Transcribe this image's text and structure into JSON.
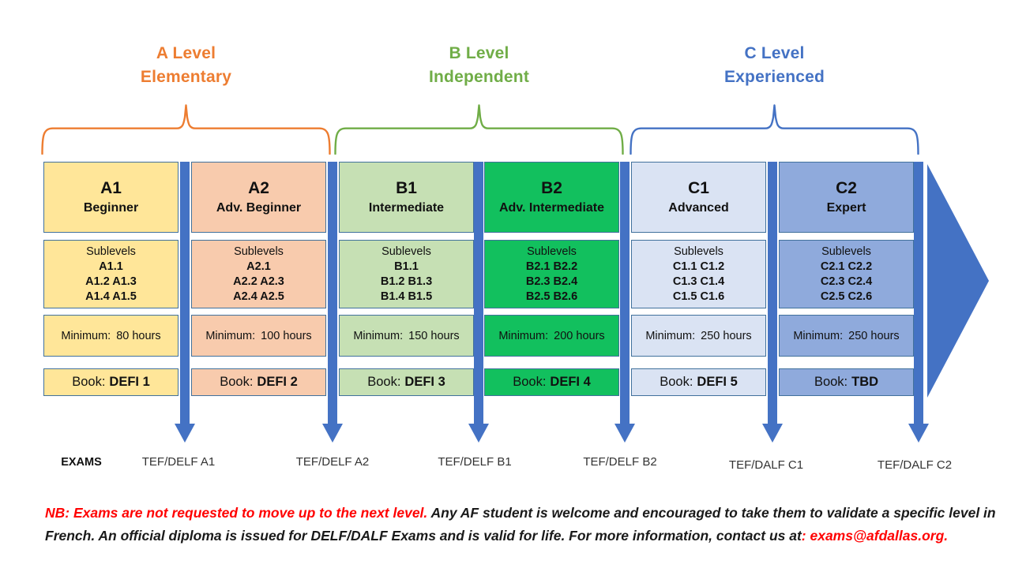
{
  "groups": [
    {
      "line1": "A Level",
      "line2": "Elementary",
      "color": "#ED7D31"
    },
    {
      "line1": "B Level",
      "line2": "Independent",
      "color": "#70AD47"
    },
    {
      "line1": "C Level",
      "line2": "Experienced",
      "color": "#4472C4"
    }
  ],
  "levels": [
    {
      "code": "A1",
      "name": "Beginner",
      "fill": "#FFE699",
      "sublevels_label": "Sublevels",
      "sublevels": [
        "A1.1",
        "A1.2 A1.3",
        "A1.4 A1.5"
      ],
      "minimum_label": "Minimum:",
      "minimum_hours": "80 hours",
      "book_label": "Book:",
      "book_value": "DEFI 1",
      "exam": "TEF/DELF A1"
    },
    {
      "code": "A2",
      "name": "Adv. Beginner",
      "fill": "#F8CBAD",
      "sublevels_label": "Sublevels",
      "sublevels": [
        "A2.1",
        "A2.2 A2.3",
        "A2.4 A2.5"
      ],
      "minimum_label": "Minimum:",
      "minimum_hours": "100 hours",
      "book_label": "Book:",
      "book_value": "DEFI 2",
      "exam": "TEF/DELF A2"
    },
    {
      "code": "B1",
      "name": "Intermediate",
      "fill": "#C6E0B4",
      "sublevels_label": "Sublevels",
      "sublevels": [
        "B1.1",
        "B1.2 B1.3",
        "B1.4 B1.5"
      ],
      "minimum_label": "Minimum:",
      "minimum_hours": "150 hours",
      "book_label": "Book:",
      "book_value": "DEFI 3",
      "exam": "TEF/DELF B1"
    },
    {
      "code": "B2",
      "name": "Adv. Intermediate",
      "fill": "#12C05E",
      "sublevels_label": "Sublevels",
      "sublevels": [
        "B2.1 B2.2",
        "B2.3 B2.4",
        "B2.5 B2.6"
      ],
      "minimum_label": "Minimum:",
      "minimum_hours": "200 hours",
      "book_label": "Book:",
      "book_value": "DEFI 4",
      "exam": "TEF/DELF B2"
    },
    {
      "code": "C1",
      "name": "Advanced",
      "fill": "#DAE3F3",
      "sublevels_label": "Sublevels",
      "sublevels": [
        "C1.1 C1.2",
        "C1.3 C1.4",
        "C1.5 C1.6"
      ],
      "minimum_label": "Minimum:",
      "minimum_hours": "250 hours",
      "book_label": "Book:",
      "book_value": "DEFI 5",
      "exam": "TEF/DALF C1"
    },
    {
      "code": "C2",
      "name": "Expert",
      "fill": "#8FAADC",
      "sublevels_label": "Sublevels",
      "sublevels": [
        "C2.1 C2.2",
        "C2.3 C2.4",
        "C2.5 C2.6"
      ],
      "minimum_label": "Minimum:",
      "minimum_hours": "250 hours",
      "book_label": "Book:",
      "book_value": "TBD",
      "exam": "TEF/DALF C2"
    }
  ],
  "exams_label": "EXAMS",
  "note": {
    "line1_red": "NB: Exams are not requested to move up to the next level.",
    "line1_black": " Any AF student is welcome and encouraged to take them to validate a specific level in",
    "line2_black": "French. An official diploma is issued for DELF/DALF Exams and is valid for life. For more information, contact us at",
    "line2_red": ": exams@afdallas.org."
  },
  "colors": {
    "arrow": "#4472C4",
    "box_border": "#41719C",
    "note_red": "#FF0000",
    "note_black": "#1A1A1A"
  }
}
